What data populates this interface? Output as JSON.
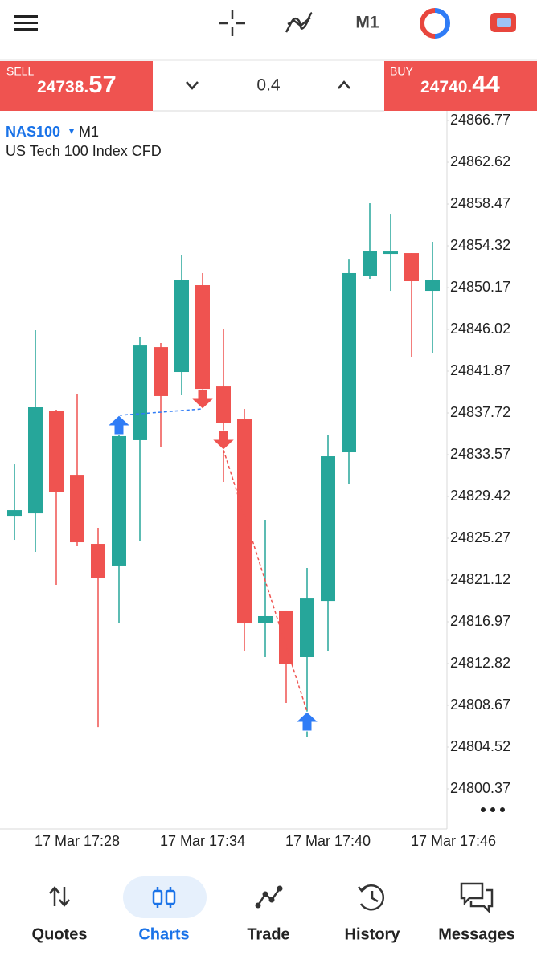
{
  "toolbar": {
    "timeframe": "M1"
  },
  "trade_panel": {
    "sell": {
      "label": "SELL",
      "price_main": "24738.",
      "price_big": "57"
    },
    "volume": "0.4",
    "buy": {
      "label": "BUY",
      "price_main": "24740.",
      "price_big": "44"
    }
  },
  "chart_data": {
    "type": "candlestick",
    "symbol": "NAS100",
    "timeframe": "M1",
    "description": "US Tech 100 Index CFD",
    "categories": [
      null,
      "17 Mar 17:28",
      null,
      null,
      null,
      null,
      null,
      "17 Mar 17:34",
      null,
      null,
      null,
      null,
      null,
      "17 Mar 17:40",
      null,
      null,
      null,
      null,
      null,
      "17 Mar 17:46",
      null
    ],
    "series": {
      "open": [
        24827.5,
        24827.74,
        24837.96,
        24831.57,
        24824.71,
        24822.56,
        24835.01,
        24844.26,
        24841.79,
        24850.41,
        24840.35,
        24837.16,
        24816.89,
        24818.09,
        24813.46,
        24819.04,
        24833.81,
        24851.29,
        24853.52,
        24853.6,
        24849.85
      ],
      "high": [
        24832.61,
        24845.94,
        24838.04,
        24839.56,
        24826.31,
        24837.24,
        24845.22,
        24844.66,
        24853.44,
        24851.61,
        24846.02,
        24838.12,
        24827.11,
        24818.09,
        24822.32,
        24835.49,
        24852.96,
        24858.55,
        24857.43,
        24853.6,
        24854.72
      ],
      "low": [
        24825.11,
        24823.91,
        24820.64,
        24824.47,
        24806.51,
        24816.89,
        24825.03,
        24834.37,
        24839.48,
        24838.84,
        24830.86,
        24814.1,
        24813.46,
        24808.91,
        24805.56,
        24814.1,
        24830.62,
        24851.05,
        24849.85,
        24843.31,
        24843.63
      ],
      "close": [
        24828.06,
        24838.28,
        24829.9,
        24824.87,
        24821.28,
        24835.41,
        24844.42,
        24839.4,
        24850.89,
        24840.11,
        24836.76,
        24816.81,
        24817.53,
        24812.82,
        24819.28,
        24833.41,
        24851.61,
        24853.84,
        24853.76,
        24850.81,
        24850.89
      ]
    },
    "up_color": "#26a69a",
    "down_color": "#ef5350",
    "trades": [
      {
        "direction": "buy",
        "open_index": 5,
        "open_price": 24837.48,
        "close_index": 9,
        "close_price": 24838.12
      },
      {
        "direction": "sell",
        "open_index": 10,
        "open_price": 24834.05,
        "close_index": 14,
        "close_price": 24808.03
      }
    ],
    "buy_color": "#2f7cf6",
    "sell_color": "#ef5350",
    "ylim": [
      24796.38,
      24867.73
    ],
    "yticks": [
      24866.77,
      24862.62,
      24858.47,
      24854.32,
      24850.17,
      24846.02,
      24841.87,
      24837.72,
      24833.57,
      24829.42,
      24825.27,
      24821.12,
      24816.97,
      24812.82,
      24808.67,
      24804.52,
      24800.37
    ]
  },
  "nav": {
    "items": [
      "Quotes",
      "Charts",
      "Trade",
      "History",
      "Messages"
    ],
    "active": 1
  }
}
